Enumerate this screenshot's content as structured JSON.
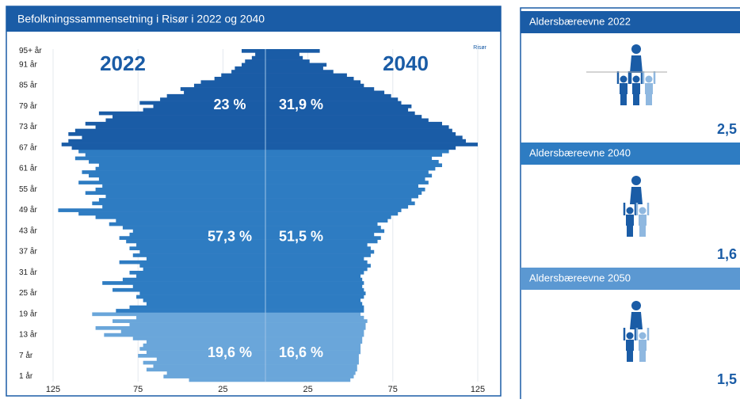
{
  "chart_data": {
    "type": "pyramid",
    "title": "Befolkningssammensetning i Risør i 2022 og 2040",
    "note": "Risør",
    "categories": [
      null,
      "1 år",
      null,
      null,
      null,
      null,
      null,
      "7 år",
      null,
      null,
      null,
      null,
      null,
      "13 år",
      null,
      null,
      null,
      null,
      null,
      "19 år",
      null,
      null,
      null,
      null,
      null,
      "25 år",
      null,
      null,
      null,
      null,
      null,
      "31 år",
      null,
      null,
      null,
      null,
      null,
      "37 år",
      null,
      null,
      null,
      null,
      null,
      "43 år",
      null,
      null,
      null,
      null,
      null,
      "49 år",
      null,
      null,
      null,
      null,
      null,
      "55 år",
      null,
      null,
      null,
      null,
      null,
      "61 år",
      null,
      null,
      null,
      null,
      null,
      "67 år",
      null,
      null,
      null,
      null,
      null,
      "73 år",
      null,
      null,
      null,
      null,
      null,
      "79 år",
      null,
      null,
      null,
      null,
      null,
      "85 år",
      null,
      null,
      null,
      null,
      null,
      "91 år",
      null,
      null,
      null,
      "95+ år"
    ],
    "series": [
      {
        "name": "2022",
        "side": "left",
        "values": [
          45,
          60,
          58,
          70,
          66,
          72,
          64,
          75,
          70,
          74,
          72,
          70,
          78,
          95,
          85,
          100,
          80,
          90,
          76,
          102,
          88,
          80,
          70,
          72,
          76,
          74,
          90,
          78,
          96,
          84,
          76,
          80,
          72,
          74,
          86,
          70,
          78,
          74,
          80,
          76,
          82,
          86,
          80,
          78,
          84,
          92,
          88,
          100,
          110,
          122,
          96,
          102,
          98,
          94,
          106,
          100,
          96,
          110,
          98,
          104,
          108,
          100,
          98,
          104,
          112,
          106,
          110,
          114,
          120,
          116,
          108,
          116,
          112,
          100,
          106,
          94,
          90,
          98,
          72,
          66,
          74,
          62,
          58,
          48,
          50,
          42,
          38,
          30,
          26,
          20,
          18,
          14,
          12,
          8,
          6,
          14
        ],
        "shares": [
          19.6,
          57.3,
          23
        ],
        "share_labels": [
          "19,6 %",
          "57,3 %",
          "23 %"
        ]
      },
      {
        "name": "2040",
        "side": "right",
        "values": [
          50,
          52,
          53,
          54,
          54,
          55,
          55,
          55,
          56,
          56,
          56,
          57,
          57,
          58,
          58,
          59,
          59,
          60,
          58,
          56,
          58,
          58,
          57,
          56,
          58,
          59,
          58,
          57,
          58,
          57,
          56,
          58,
          60,
          62,
          60,
          58,
          62,
          64,
          62,
          60,
          66,
          68,
          64,
          70,
          68,
          66,
          72,
          74,
          78,
          80,
          84,
          88,
          86,
          90,
          92,
          94,
          90,
          96,
          94,
          98,
          96,
          100,
          104,
          102,
          98,
          104,
          108,
          112,
          125,
          118,
          116,
          112,
          110,
          108,
          104,
          96,
          92,
          88,
          84,
          86,
          80,
          78,
          74,
          70,
          64,
          58,
          56,
          52,
          48,
          40,
          34,
          36,
          26,
          22,
          20,
          32
        ],
        "shares": [
          16.6,
          51.5,
          31.9
        ],
        "share_labels": [
          "16,6 %",
          "51,5 %",
          "31,9 %"
        ]
      }
    ],
    "band_starts": [
      0,
      20,
      67
    ],
    "band_colors": [
      "#6aa6da",
      "#2e7cc2",
      "#1a5ca6"
    ],
    "xlim": [
      0,
      125
    ],
    "xticks": [
      25,
      75,
      125
    ],
    "grid": true
  },
  "side_panels": [
    {
      "title": "Aldersbæreevne 2022",
      "value": 2.5,
      "value_label": "2,5",
      "color": "#1a5ca6"
    },
    {
      "title": "Aldersbæreevne 2040",
      "value": 1.6,
      "value_label": "1,6",
      "color": "#2e7cc2"
    },
    {
      "title": "Aldersbæreevne 2050",
      "value": 1.5,
      "value_label": "1,5",
      "color": "#5b98d2"
    }
  ]
}
